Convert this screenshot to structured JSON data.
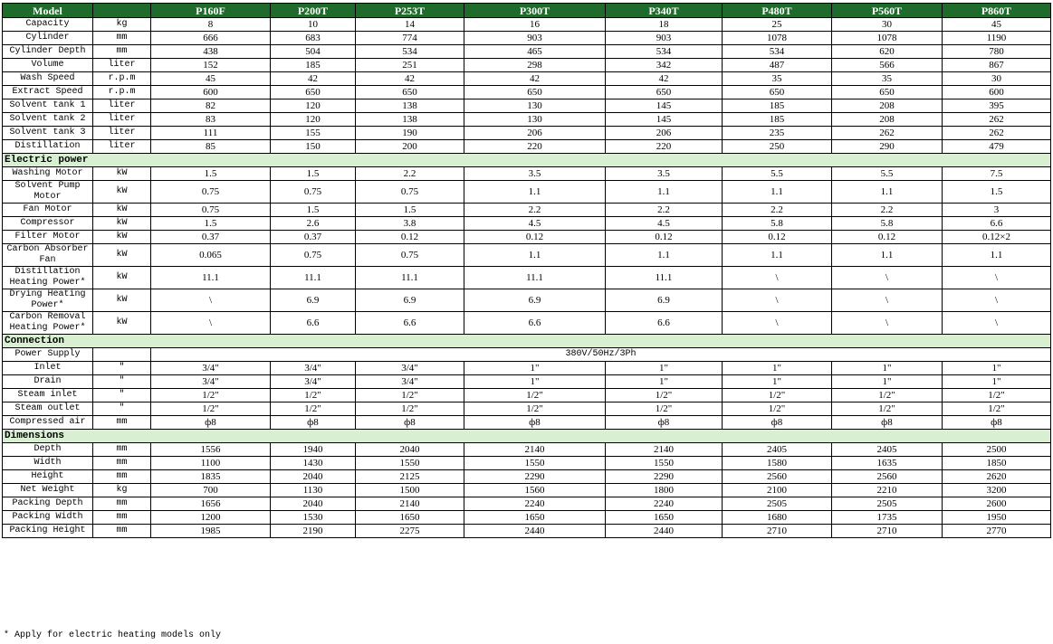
{
  "header": {
    "label": "Model",
    "models": [
      "P160F",
      "P200T",
      "P253T",
      "P300T",
      "P340T",
      "P480T",
      "P560T",
      "P860T"
    ]
  },
  "sections": [
    {
      "rows": [
        {
          "label": "Capacity",
          "unit": "kg",
          "values": [
            "8",
            "10",
            "14",
            "16",
            "18",
            "25",
            "30",
            "45"
          ]
        },
        {
          "label": "Cylinder",
          "unit": "mm",
          "values": [
            "666",
            "683",
            "774",
            "903",
            "903",
            "1078",
            "1078",
            "1190"
          ]
        },
        {
          "label": "Cylinder Depth",
          "unit": "mm",
          "values": [
            "438",
            "504",
            "534",
            "465",
            "534",
            "534",
            "620",
            "780"
          ]
        },
        {
          "label": "Volume",
          "unit": "liter",
          "values": [
            "152",
            "185",
            "251",
            "298",
            "342",
            "487",
            "566",
            "867"
          ]
        },
        {
          "label": "Wash Speed",
          "unit": "r.p.m",
          "values": [
            "45",
            "42",
            "42",
            "42",
            "42",
            "35",
            "35",
            "30"
          ]
        },
        {
          "label": "Extract Speed",
          "unit": "r.p.m",
          "values": [
            "600",
            "650",
            "650",
            "650",
            "650",
            "650",
            "650",
            "600"
          ]
        },
        {
          "label": "Solvent tank 1",
          "unit": "liter",
          "values": [
            "82",
            "120",
            "138",
            "130",
            "145",
            "185",
            "208",
            "395"
          ]
        },
        {
          "label": "Solvent tank 2",
          "unit": "liter",
          "values": [
            "83",
            "120",
            "138",
            "130",
            "145",
            "185",
            "208",
            "262"
          ]
        },
        {
          "label": "Solvent tank 3",
          "unit": "liter",
          "values": [
            "111",
            "155",
            "190",
            "206",
            "206",
            "235",
            "262",
            "262"
          ]
        },
        {
          "label": "Distillation",
          "unit": "liter",
          "values": [
            "85",
            "150",
            "200",
            "220",
            "220",
            "250",
            "290",
            "479"
          ]
        }
      ]
    },
    {
      "title": "Electric power",
      "rows": [
        {
          "label": "Washing Motor",
          "unit": "kW",
          "values": [
            "1.5",
            "1.5",
            "2.2",
            "3.5",
            "3.5",
            "5.5",
            "5.5",
            "7.5"
          ]
        },
        {
          "label": "Solvent Pump Motor",
          "unit": "kW",
          "values": [
            "0.75",
            "0.75",
            "0.75",
            "1.1",
            "1.1",
            "1.1",
            "1.1",
            "1.5"
          ]
        },
        {
          "label": "Fan Motor",
          "unit": "kW",
          "values": [
            "0.75",
            "1.5",
            "1.5",
            "2.2",
            "2.2",
            "2.2",
            "2.2",
            "3"
          ]
        },
        {
          "label": "Compressor",
          "unit": "kW",
          "values": [
            "1.5",
            "2.6",
            "3.8",
            "4.5",
            "4.5",
            "5.8",
            "5.8",
            "6.6"
          ]
        },
        {
          "label": "Filter Motor",
          "unit": "kW",
          "values": [
            "0.37",
            "0.37",
            "0.12",
            "0.12",
            "0.12",
            "0.12",
            "0.12",
            "0.12×2"
          ]
        },
        {
          "label": "Carbon Absorber Fan",
          "unit": "kW",
          "values": [
            "0.065",
            "0.75",
            "0.75",
            "1.1",
            "1.1",
            "1.1",
            "1.1",
            "1.1"
          ]
        },
        {
          "label": "Distillation Heating Power*",
          "unit": "kW",
          "values": [
            "11.1",
            "11.1",
            "11.1",
            "11.1",
            "11.1",
            "\\",
            "\\",
            "\\"
          ]
        },
        {
          "label": "Drying Heating Power*",
          "unit": "kW",
          "values": [
            "\\",
            "6.9",
            "6.9",
            "6.9",
            "6.9",
            "\\",
            "\\",
            "\\"
          ]
        },
        {
          "label": "Carbon Removal Heating Power*",
          "unit": "kW",
          "values": [
            "\\",
            "6.6",
            "6.6",
            "6.6",
            "6.6",
            "\\",
            "\\",
            "\\"
          ]
        }
      ]
    },
    {
      "title": "Connection",
      "rows": [
        {
          "label": "Power Supply",
          "merged": "380V/50Hz/3Ph"
        },
        {
          "label": "Inlet",
          "unit": "\"",
          "values": [
            "3/4\"",
            "3/4\"",
            "3/4\"",
            "1\"",
            "1\"",
            "1\"",
            "1\"",
            "1\""
          ]
        },
        {
          "label": "Drain",
          "unit": "\"",
          "values": [
            "3/4\"",
            "3/4\"",
            "3/4\"",
            "1\"",
            "1\"",
            "1\"",
            "1\"",
            "1\""
          ]
        },
        {
          "label": "Steam inlet",
          "unit": "\"",
          "values": [
            "1/2\"",
            "1/2\"",
            "1/2\"",
            "1/2\"",
            "1/2\"",
            "1/2\"",
            "1/2\"",
            "1/2\""
          ]
        },
        {
          "label": "Steam outlet",
          "unit": "\"",
          "values": [
            "1/2\"",
            "1/2\"",
            "1/2\"",
            "1/2\"",
            "1/2\"",
            "1/2\"",
            "1/2\"",
            "1/2\""
          ]
        },
        {
          "label": "Compressed air",
          "unit": "mm",
          "values": [
            "ф8",
            "ф8",
            "ф8",
            "ф8",
            "ф8",
            "ф8",
            "ф8",
            "ф8"
          ]
        }
      ]
    },
    {
      "title": "Dimensions",
      "rows": [
        {
          "label": "Depth",
          "unit": "mm",
          "values": [
            "1556",
            "1940",
            "2040",
            "2140",
            "2140",
            "2405",
            "2405",
            "2500"
          ]
        },
        {
          "label": "Width",
          "unit": "mm",
          "values": [
            "1100",
            "1430",
            "1550",
            "1550",
            "1550",
            "1580",
            "1635",
            "1850"
          ]
        },
        {
          "label": "Height",
          "unit": "mm",
          "values": [
            "1835",
            "2040",
            "2125",
            "2290",
            "2290",
            "2560",
            "2560",
            "2620"
          ]
        },
        {
          "label": "Net Weight",
          "unit": "kg",
          "values": [
            "700",
            "1130",
            "1500",
            "1560",
            "1800",
            "2100",
            "2210",
            "3200"
          ]
        },
        {
          "label": "Packing Depth",
          "unit": "mm",
          "values": [
            "1656",
            "2040",
            "2140",
            "2240",
            "2240",
            "2505",
            "2505",
            "2600"
          ]
        },
        {
          "label": "Packing Width",
          "unit": "mm",
          "values": [
            "1200",
            "1530",
            "1650",
            "1650",
            "1650",
            "1680",
            "1735",
            "1950"
          ]
        },
        {
          "label": "Packing Height",
          "unit": "mm",
          "values": [
            "1985",
            "2190",
            "2275",
            "2440",
            "2440",
            "2710",
            "2710",
            "2770"
          ]
        }
      ]
    }
  ],
  "footnote": "* Apply for electric heating models only"
}
